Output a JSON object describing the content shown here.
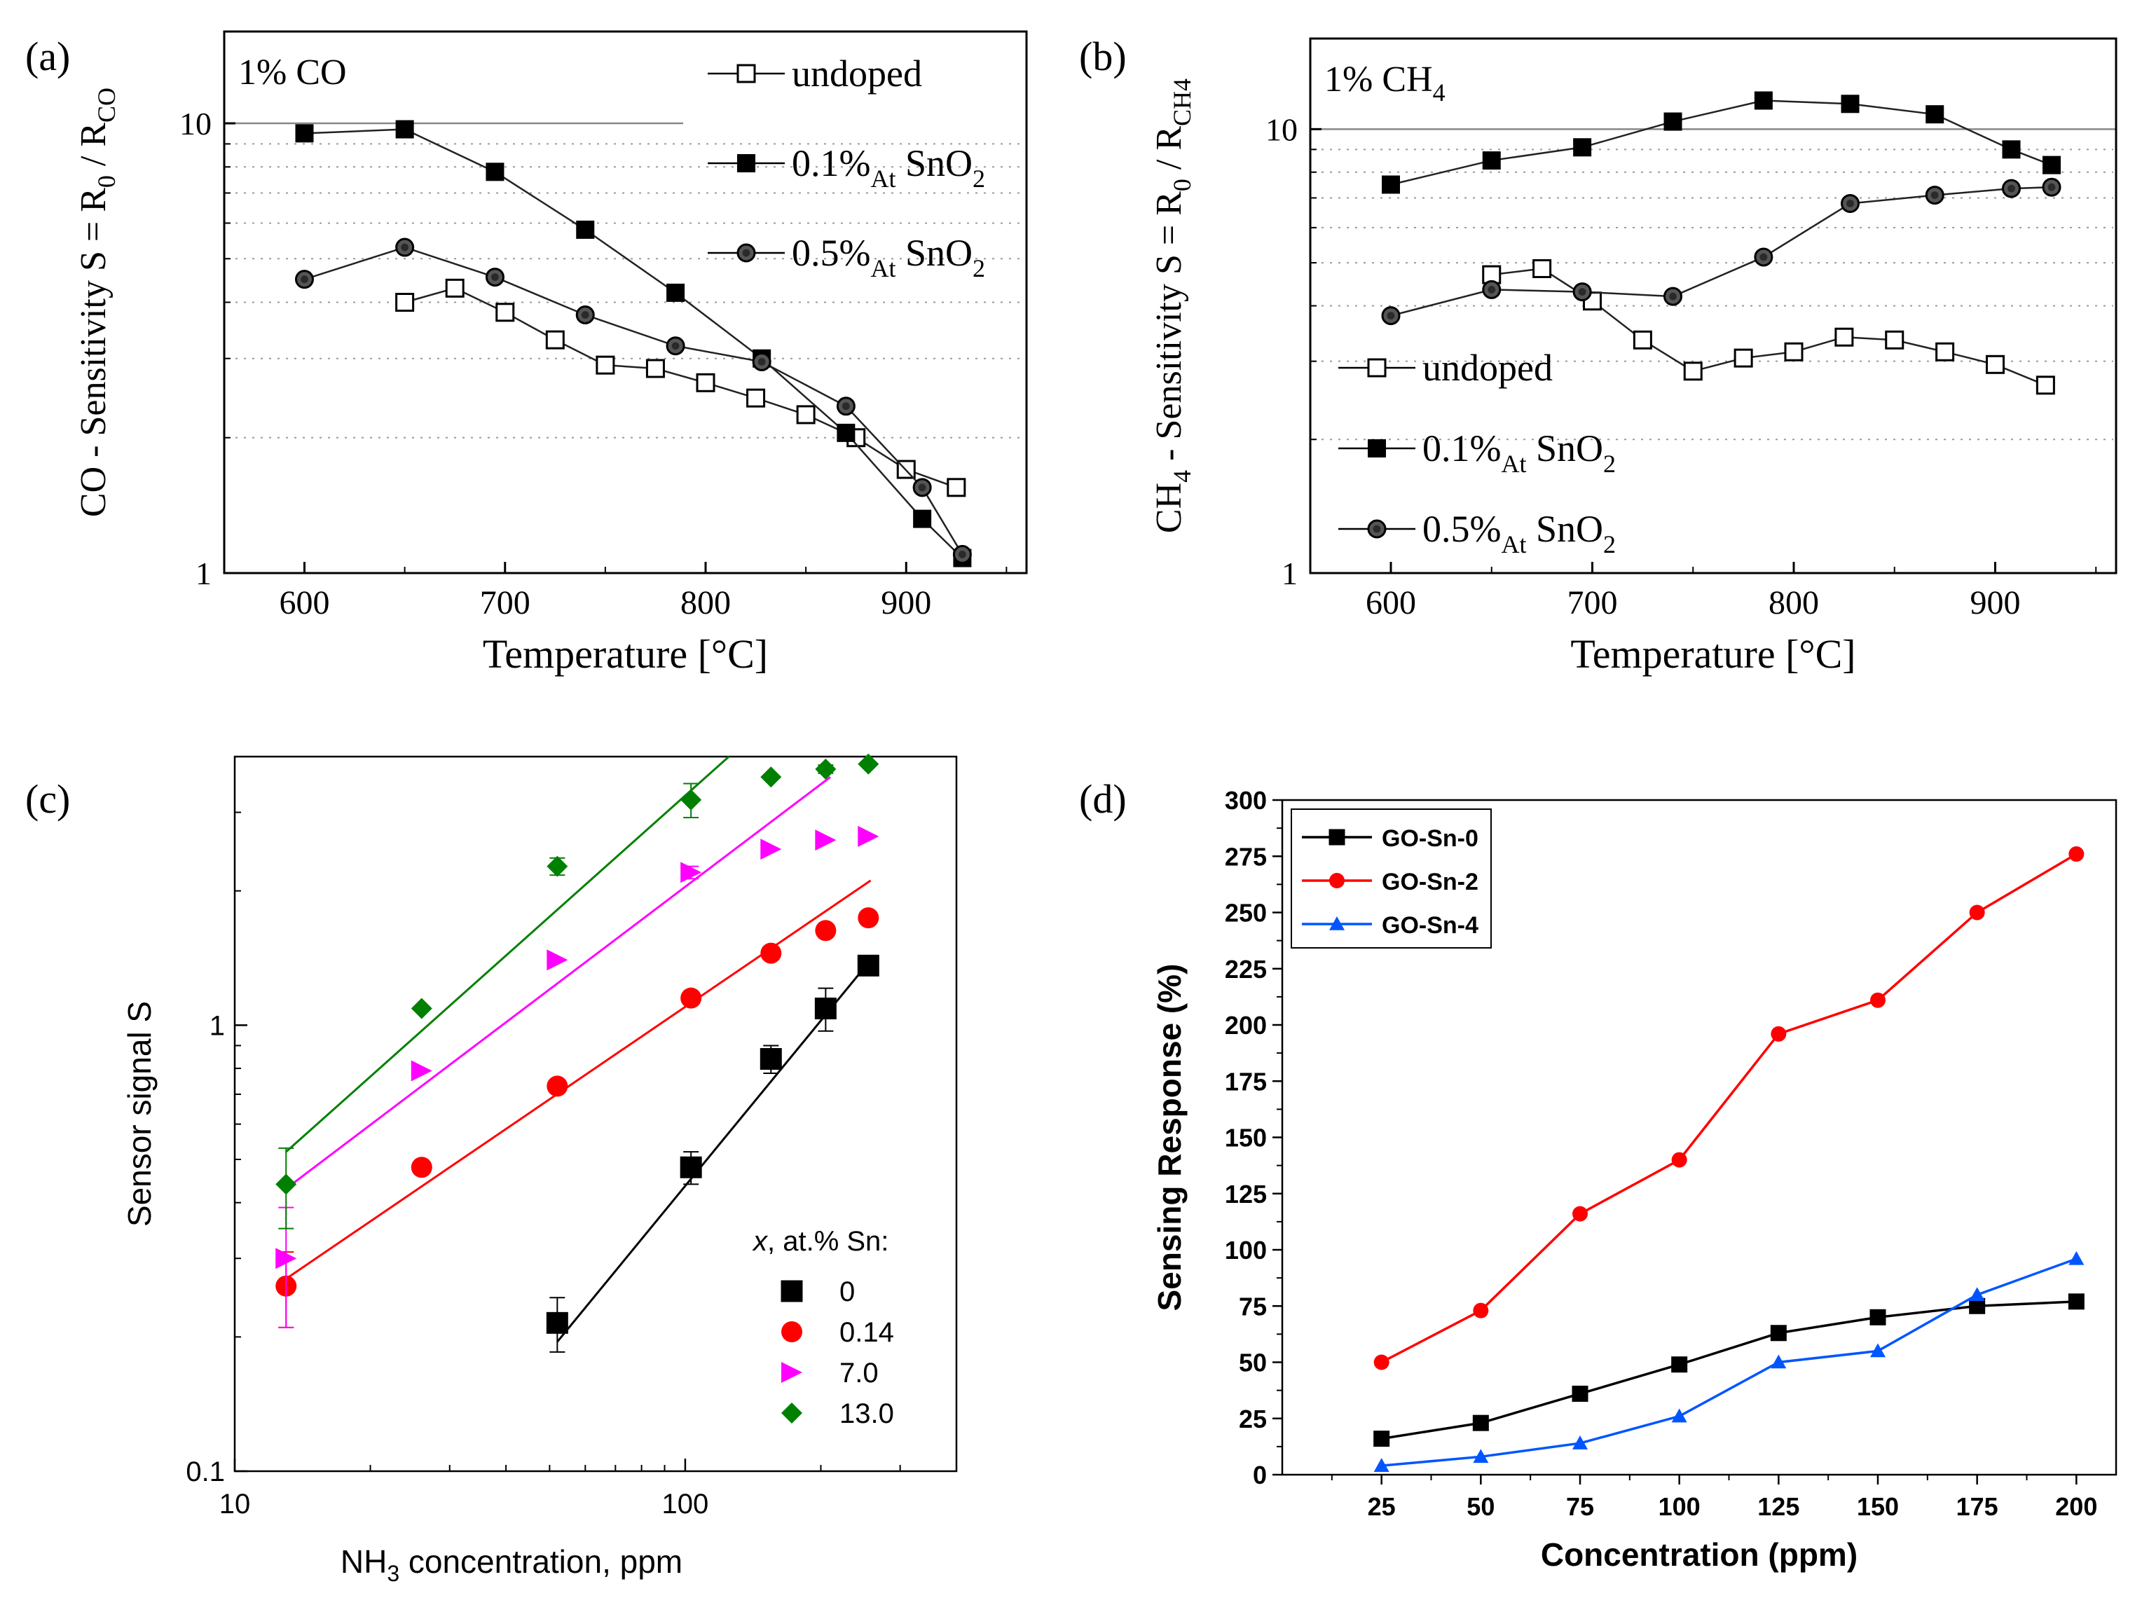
{
  "chart_data": [
    {
      "id": "a",
      "panel_label": "(a)",
      "type": "line",
      "scale": "log-y",
      "gas_label": {
        "main": "1% CO",
        "sub": ""
      },
      "ylabel_parts": [
        "CO - Sensitivity S = R",
        "0",
        " / R",
        "CO"
      ],
      "xlabel": "Temperature [°C]",
      "xlim": [
        560,
        960
      ],
      "ylim": [
        1,
        16
      ],
      "x_ticks": [
        600,
        700,
        800,
        900
      ],
      "y_tick_labels": [
        {
          "value": 1,
          "label": "1"
        },
        {
          "value": 10,
          "label": "10"
        }
      ],
      "legend_position": "top-right",
      "series": [
        {
          "name": "undoped",
          "legend_main": "undoped",
          "legend_sub": "",
          "legend_tail": "",
          "legend_tail_sub": "",
          "marker": "square-open",
          "x": [
            650,
            675,
            700,
            725,
            750,
            775,
            800,
            825,
            850,
            875,
            900,
            925
          ],
          "y": [
            4.0,
            4.3,
            3.8,
            3.3,
            2.9,
            2.85,
            2.65,
            2.45,
            2.25,
            2.0,
            1.7,
            1.55
          ]
        },
        {
          "name": "0.1%At SnO2",
          "legend_main": "0.1%",
          "legend_sub": "At",
          "legend_tail": " SnO",
          "legend_tail_sub": "2",
          "marker": "square-filled",
          "x": [
            600,
            650,
            695,
            740,
            785,
            828,
            870,
            908,
            928
          ],
          "y": [
            9.5,
            9.7,
            7.8,
            5.8,
            4.2,
            3.0,
            2.05,
            1.32,
            1.08
          ]
        },
        {
          "name": "0.5%At SnO2",
          "legend_main": "0.5%",
          "legend_sub": "At",
          "legend_tail": " SnO",
          "legend_tail_sub": "2",
          "marker": "circle-hatched",
          "x": [
            600,
            650,
            695,
            740,
            785,
            828,
            870,
            908,
            928
          ],
          "y": [
            4.5,
            5.3,
            4.55,
            3.75,
            3.2,
            2.95,
            2.35,
            1.55,
            1.1
          ]
        }
      ]
    },
    {
      "id": "b",
      "panel_label": "(b)",
      "type": "line",
      "scale": "log-y",
      "gas_label": {
        "main": "1% CH",
        "sub": "4"
      },
      "ylabel_parts": [
        "CH",
        "4",
        " - Sensitivity S = R",
        "0",
        " / R",
        "CH4"
      ],
      "xlabel": "Temperature [°C]",
      "xlim": [
        560,
        960
      ],
      "ylim": [
        1,
        16
      ],
      "x_ticks": [
        600,
        700,
        800,
        900
      ],
      "y_tick_labels": [
        {
          "value": 1,
          "label": "1"
        },
        {
          "value": 10,
          "label": "10"
        }
      ],
      "legend_position": "center-left",
      "series": [
        {
          "name": "undoped",
          "legend_main": "undoped",
          "legend_sub": "",
          "legend_tail": "",
          "legend_tail_sub": "",
          "marker": "square-open",
          "x": [
            650,
            675,
            700,
            725,
            750,
            775,
            800,
            825,
            850,
            875,
            900,
            925
          ],
          "y": [
            4.7,
            4.85,
            4.1,
            3.35,
            2.85,
            3.05,
            3.15,
            3.4,
            3.35,
            3.15,
            2.95,
            2.65
          ]
        },
        {
          "name": "0.1%At SnO2",
          "legend_main": "0.1%",
          "legend_sub": "At",
          "legend_tail": " SnO",
          "legend_tail_sub": "2",
          "marker": "square-filled",
          "x": [
            600,
            650,
            695,
            740,
            785,
            828,
            870,
            908,
            928
          ],
          "y": [
            7.5,
            8.5,
            9.1,
            10.4,
            11.6,
            11.4,
            10.8,
            9.0,
            8.3
          ]
        },
        {
          "name": "0.5%At SnO2",
          "legend_main": "0.5%",
          "legend_sub": "At",
          "legend_tail": " SnO",
          "legend_tail_sub": "2",
          "marker": "circle-hatched",
          "x": [
            600,
            650,
            695,
            740,
            785,
            828,
            870,
            908,
            928
          ],
          "y": [
            3.8,
            4.35,
            4.3,
            4.2,
            5.15,
            6.8,
            7.1,
            7.35,
            7.4
          ]
        }
      ]
    },
    {
      "id": "c",
      "panel_label": "(c)",
      "type": "scatter",
      "scale": "log-log",
      "xlabel_parts": [
        "NH",
        "3",
        " concentration, ppm"
      ],
      "ylabel": "Sensor signal S",
      "xlim": [
        10,
        400
      ],
      "ylim": [
        0.1,
        4.0
      ],
      "x_tick_labels": [
        {
          "value": 10,
          "label": "10"
        },
        {
          "value": 100,
          "label": "100"
        }
      ],
      "y_tick_labels": [
        {
          "value": 0.1,
          "label": "0.1"
        },
        {
          "value": 1,
          "label": "1"
        }
      ],
      "legend_title_italic": "x",
      "legend_title_rest": ", at.% Sn:",
      "legend_position": "bottom-right",
      "series": [
        {
          "name": "0",
          "color": "#000000",
          "marker": "square",
          "x": [
            52,
            103,
            155,
            205,
            255
          ],
          "y": [
            0.215,
            0.48,
            0.84,
            1.09,
            1.36
          ],
          "yerr": [
            0.03,
            0.04,
            0.06,
            0.12,
            0.03
          ],
          "fit": {
            "x": [
              52,
              258
            ],
            "y": [
              0.195,
              1.4
            ]
          }
        },
        {
          "name": "0.14",
          "color": "#ff0000",
          "marker": "circle",
          "x": [
            13,
            26,
            52,
            103,
            155,
            205,
            255
          ],
          "y": [
            0.26,
            0.48,
            0.73,
            1.15,
            1.45,
            1.63,
            1.74
          ],
          "yerr": [
            0.05,
            0,
            0,
            0,
            0,
            0,
            0
          ],
          "fit": {
            "x": [
              13,
              258
            ],
            "y": [
              0.27,
              2.11
            ]
          }
        },
        {
          "name": "7.0",
          "color": "#ff00ff",
          "marker": "triangle-right",
          "x": [
            13,
            26,
            52,
            103,
            155,
            205,
            255
          ],
          "y": [
            0.3,
            0.79,
            1.4,
            2.2,
            2.48,
            2.6,
            2.65
          ],
          "yerr": [
            0.09,
            0,
            0,
            0.07,
            0,
            0,
            0
          ],
          "fit": {
            "x": [
              13,
              210
            ],
            "y": [
              0.43,
              3.6
            ]
          }
        },
        {
          "name": "13.0",
          "color": "#008000",
          "marker": "diamond",
          "x": [
            13,
            26,
            52,
            103,
            155,
            205,
            255
          ],
          "y": [
            0.44,
            1.09,
            2.27,
            3.2,
            3.6,
            3.75,
            3.85
          ],
          "yerr": [
            0.09,
            0,
            0.1,
            0.28,
            0,
            0.08,
            0
          ],
          "fit": {
            "x": [
              13,
              125
            ],
            "y": [
              0.52,
              4.0
            ]
          }
        }
      ]
    },
    {
      "id": "d",
      "panel_label": "(d)",
      "type": "line",
      "scale": "linear",
      "xlabel": "Concentration (ppm)",
      "ylabel": "Sensing Response (%)",
      "xlim": [
        0,
        210
      ],
      "ylim": [
        0,
        300
      ],
      "x_ticks": [
        25,
        50,
        75,
        100,
        125,
        150,
        175,
        200
      ],
      "y_ticks": [
        0,
        25,
        50,
        75,
        100,
        125,
        150,
        175,
        200,
        225,
        250,
        275,
        300
      ],
      "legend_position": "top-left",
      "series": [
        {
          "name": "GO-Sn-0",
          "color": "#000000",
          "marker": "square",
          "x": [
            25,
            50,
            75,
            100,
            125,
            150,
            175,
            200
          ],
          "y": [
            16,
            23,
            36,
            49,
            63,
            70,
            75,
            77
          ]
        },
        {
          "name": "GO-Sn-2",
          "color": "#ff0000",
          "marker": "circle",
          "x": [
            25,
            50,
            75,
            100,
            125,
            150,
            175,
            200
          ],
          "y": [
            50,
            73,
            116,
            140,
            196,
            211,
            250,
            276
          ]
        },
        {
          "name": "GO-Sn-4",
          "color": "#0055ff",
          "marker": "triangle-up",
          "x": [
            25,
            50,
            75,
            100,
            125,
            150,
            175,
            200
          ],
          "y": [
            4,
            8,
            14,
            26,
            50,
            55,
            80,
            96
          ]
        }
      ]
    }
  ]
}
